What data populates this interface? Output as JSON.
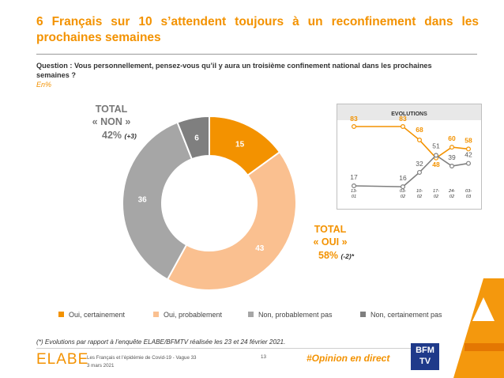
{
  "header": {
    "title": "6 Français sur 10 s’attendent toujours à un reconfinement dans les prochaines semaines",
    "question": "Question : Vous personnellement, pensez-vous qu’il y aura un troisième confinement national dans les prochaines semaines ?",
    "unit": "En%"
  },
  "totals": {
    "no_label": "TOTAL",
    "no_word": "« NON »",
    "no_value": "42%",
    "no_delta": "(+3)",
    "yes_label": "TOTAL",
    "yes_word": "« OUI »",
    "yes_value": "58%",
    "yes_delta": "(-2)*"
  },
  "evolutions_title": "EVOLUTIONS",
  "footer": {
    "footnote": "(*) Evolutions par rapport à l’enquête ELABE/BFMTV réalisée les 23 et 24 février 2021.",
    "logo": "ELABE",
    "source_line1": "Les Français et l’épidémie de Covid-19 - Vague 33",
    "source_line2": "3 mars 2021",
    "page": "13",
    "hashtag": "#Opinion en direct",
    "bfm_line1": "BFM",
    "bfm_line2": "TV"
  },
  "colors": {
    "accent": "#f39200",
    "oui_certainement": "#f39200",
    "oui_probablement": "#fac090",
    "non_probablement_pas": "#a6a6a6",
    "non_certainement_pas": "#7f7f7f"
  },
  "chart_data": [
    {
      "type": "pie",
      "donut": true,
      "categories": [
        "Oui, certainement",
        "Oui, probablement",
        "Non, probablement pas",
        "Non, certainement pas"
      ],
      "values": [
        15,
        43,
        36,
        6
      ]
    },
    {
      "type": "line",
      "title": "EVOLUTIONS",
      "x": [
        "13-01",
        "03-02",
        "10-02",
        "17-02",
        "24-02",
        "03-03"
      ],
      "series": [
        {
          "name": "OUI",
          "values": [
            83,
            83,
            68,
            48,
            60,
            58
          ]
        },
        {
          "name": "NON",
          "values": [
            17,
            16,
            32,
            51,
            39,
            42
          ]
        }
      ]
    }
  ]
}
